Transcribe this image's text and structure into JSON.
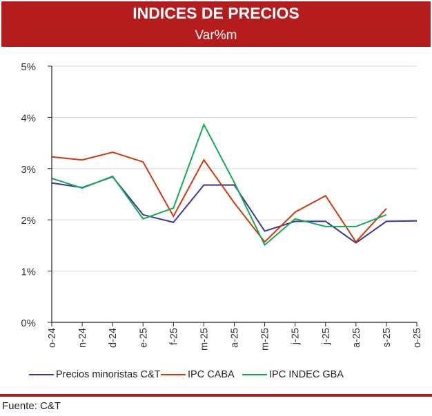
{
  "header": {
    "title": "INDICES DE PRECIOS",
    "subtitle": "Var%m"
  },
  "colors": {
    "brand_red": "#b51c1e",
    "series_ct": "#3a3896",
    "series_caba": "#cc3b0c",
    "series_gba": "#12aa55"
  },
  "chart_data": {
    "type": "line",
    "title": "INDICES DE PRECIOS",
    "subtitle": "Var%m",
    "xlabel": "",
    "ylabel": "",
    "categories": [
      "o-24",
      "n-24",
      "d-24",
      "e-25",
      "f-25",
      "m-25",
      "a-25",
      "m-25",
      "j-25",
      "j-25",
      "a-25",
      "s-25",
      "o-25"
    ],
    "ylim": [
      0,
      5
    ],
    "yticks": [
      0,
      1,
      2,
      3,
      4,
      5
    ],
    "ytick_labels": [
      "0%",
      "1%",
      "2%",
      "3%",
      "4%",
      "5%"
    ],
    "grid": true,
    "legend_position": "bottom",
    "series": [
      {
        "name": "Precios minoristas C&T",
        "color": "#3a3896",
        "values": [
          2.72,
          2.63,
          2.84,
          2.1,
          1.95,
          2.68,
          2.68,
          1.78,
          1.97,
          1.97,
          1.55,
          1.97,
          1.98
        ]
      },
      {
        "name": "IPC CABA",
        "color": "#cc3b0c",
        "values": [
          3.23,
          3.17,
          3.32,
          3.13,
          2.07,
          3.17,
          2.33,
          1.57,
          2.15,
          2.47,
          1.57,
          2.22,
          null
        ]
      },
      {
        "name": "IPC INDEC GBA",
        "color": "#12aa55",
        "values": [
          2.81,
          2.62,
          2.85,
          2.02,
          2.23,
          3.86,
          2.73,
          1.51,
          2.02,
          1.87,
          1.87,
          2.1,
          null
        ]
      }
    ]
  },
  "footer": {
    "source": "Fuente: C&T"
  }
}
